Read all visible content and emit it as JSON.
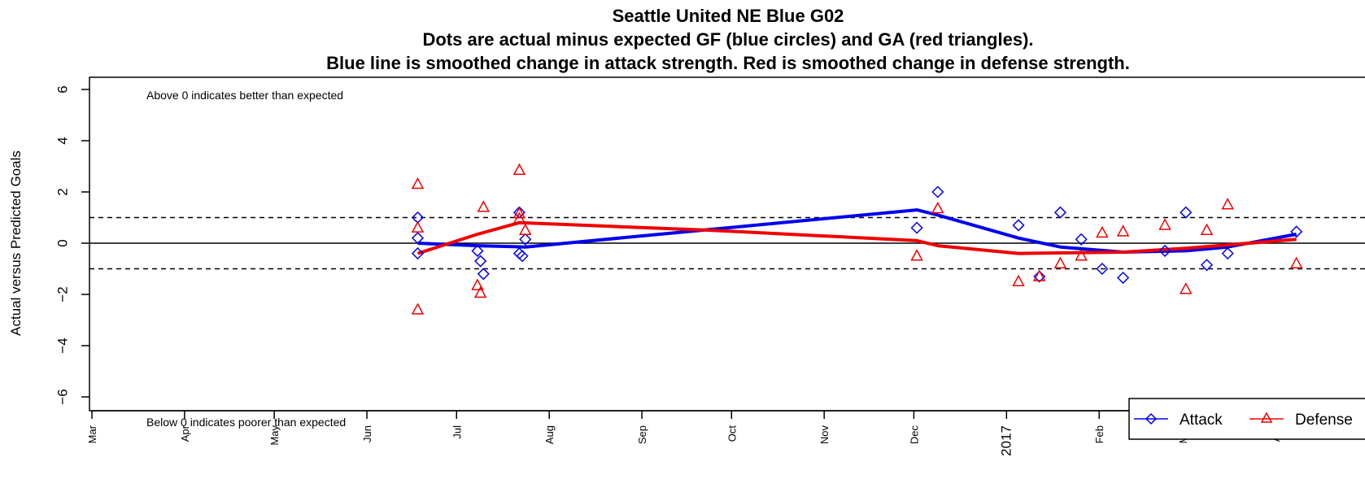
{
  "chart_data": {
    "type": "scatter",
    "title": [
      "Seattle United NE Blue G02",
      "Dots are actual minus expected GF (blue circles) and GA (red triangles).",
      "Blue line is smoothed change in attack strength. Red is smoothed change in defense strength."
    ],
    "ylabel": "Actual versus Predicted Goals",
    "xlabel": "",
    "ylim": [
      -6.5,
      6.5
    ],
    "y_ticks": [
      -6,
      -4,
      -2,
      0,
      2,
      4,
      6
    ],
    "x_ticks": [
      {
        "date": "2016-03-01",
        "label": "Mar"
      },
      {
        "date": "2016-04-01",
        "label": "Apr"
      },
      {
        "date": "2016-05-01",
        "label": "May"
      },
      {
        "date": "2016-06-01",
        "label": "Jun"
      },
      {
        "date": "2016-07-01",
        "label": "Jul"
      },
      {
        "date": "2016-08-01",
        "label": "Aug"
      },
      {
        "date": "2016-09-01",
        "label": "Sep"
      },
      {
        "date": "2016-10-01",
        "label": "Oct"
      },
      {
        "date": "2016-11-01",
        "label": "Nov"
      },
      {
        "date": "2016-12-01",
        "label": "Dec"
      },
      {
        "date": "2017-01-01",
        "label": "2017"
      },
      {
        "date": "2017-02-01",
        "label": "Feb"
      },
      {
        "date": "2017-03-01",
        "label": "Mar"
      },
      {
        "date": "2017-04-01",
        "label": "Apr"
      }
    ],
    "xlim": [
      "2016-03-01",
      "2017-04-19"
    ],
    "reference_lines": [
      {
        "y": 0,
        "style": "solid"
      },
      {
        "y": 1,
        "style": "dashed"
      },
      {
        "y": -1,
        "style": "dashed"
      }
    ],
    "annotations": {
      "top": "Above 0 indicates better than expected",
      "bottom": "Below 0 indicates poorer than expected"
    },
    "legend": {
      "placement": "bottom-right",
      "entries": [
        "Attack",
        "Defense"
      ]
    },
    "colors": {
      "attack": "#0000ee",
      "defense": "#ee0000"
    },
    "series": [
      {
        "name": "Attack",
        "marker": "diamond",
        "points": [
          {
            "x": "2016-06-18",
            "y": 1.0
          },
          {
            "x": "2016-06-18",
            "y": 0.2
          },
          {
            "x": "2016-06-18",
            "y": -0.4
          },
          {
            "x": "2016-07-08",
            "y": -0.3
          },
          {
            "x": "2016-07-09",
            "y": -0.7
          },
          {
            "x": "2016-07-10",
            "y": -1.2
          },
          {
            "x": "2016-07-22",
            "y": 1.2
          },
          {
            "x": "2016-07-22",
            "y": -0.4
          },
          {
            "x": "2016-07-23",
            "y": -0.5
          },
          {
            "x": "2016-07-24",
            "y": 0.15
          },
          {
            "x": "2016-12-02",
            "y": 0.6
          },
          {
            "x": "2016-12-09",
            "y": 2.0
          },
          {
            "x": "2017-01-05",
            "y": 0.7
          },
          {
            "x": "2017-01-12",
            "y": -1.3
          },
          {
            "x": "2017-01-19",
            "y": 1.2
          },
          {
            "x": "2017-01-26",
            "y": 0.15
          },
          {
            "x": "2017-02-02",
            "y": -1.0
          },
          {
            "x": "2017-02-09",
            "y": -1.35
          },
          {
            "x": "2017-02-23",
            "y": -0.3
          },
          {
            "x": "2017-03-02",
            "y": 1.2
          },
          {
            "x": "2017-03-09",
            "y": -0.85
          },
          {
            "x": "2017-03-16",
            "y": -0.4
          },
          {
            "x": "2017-04-08",
            "y": 0.45
          }
        ]
      },
      {
        "name": "Defense",
        "marker": "triangle",
        "points": [
          {
            "x": "2016-06-18",
            "y": 2.3
          },
          {
            "x": "2016-06-18",
            "y": 0.6
          },
          {
            "x": "2016-06-18",
            "y": -2.6
          },
          {
            "x": "2016-07-08",
            "y": -1.65
          },
          {
            "x": "2016-07-09",
            "y": -1.95
          },
          {
            "x": "2016-07-10",
            "y": 1.4
          },
          {
            "x": "2016-07-22",
            "y": 2.85
          },
          {
            "x": "2016-07-22",
            "y": 1.15
          },
          {
            "x": "2016-07-22",
            "y": 0.95
          },
          {
            "x": "2016-07-24",
            "y": 0.5
          },
          {
            "x": "2016-12-02",
            "y": -0.5
          },
          {
            "x": "2016-12-09",
            "y": 1.35
          },
          {
            "x": "2017-01-05",
            "y": -1.5
          },
          {
            "x": "2017-01-12",
            "y": -1.3
          },
          {
            "x": "2017-01-19",
            "y": -0.8
          },
          {
            "x": "2017-01-26",
            "y": -0.5
          },
          {
            "x": "2017-02-02",
            "y": 0.4
          },
          {
            "x": "2017-02-09",
            "y": 0.45
          },
          {
            "x": "2017-02-23",
            "y": 0.7
          },
          {
            "x": "2017-03-02",
            "y": -1.8
          },
          {
            "x": "2017-03-09",
            "y": 0.5
          },
          {
            "x": "2017-03-16",
            "y": 1.5
          },
          {
            "x": "2017-04-08",
            "y": -0.8
          }
        ]
      }
    ],
    "smoothed": [
      {
        "name": "Attack",
        "points": [
          {
            "x": "2016-06-18",
            "y": 0.0
          },
          {
            "x": "2016-07-08",
            "y": -0.1
          },
          {
            "x": "2016-07-24",
            "y": -0.15
          },
          {
            "x": "2016-09-25",
            "y": 0.55
          },
          {
            "x": "2016-12-02",
            "y": 1.3
          },
          {
            "x": "2016-12-09",
            "y": 1.1
          },
          {
            "x": "2017-01-05",
            "y": 0.2
          },
          {
            "x": "2017-01-19",
            "y": -0.15
          },
          {
            "x": "2017-02-09",
            "y": -0.35
          },
          {
            "x": "2017-03-02",
            "y": -0.3
          },
          {
            "x": "2017-03-16",
            "y": -0.15
          },
          {
            "x": "2017-04-08",
            "y": 0.35
          }
        ]
      },
      {
        "name": "Defense",
        "points": [
          {
            "x": "2016-06-18",
            "y": -0.4
          },
          {
            "x": "2016-07-08",
            "y": 0.35
          },
          {
            "x": "2016-07-22",
            "y": 0.8
          },
          {
            "x": "2016-09-25",
            "y": 0.5
          },
          {
            "x": "2016-12-02",
            "y": 0.1
          },
          {
            "x": "2016-12-09",
            "y": -0.1
          },
          {
            "x": "2017-01-05",
            "y": -0.4
          },
          {
            "x": "2017-02-09",
            "y": -0.35
          },
          {
            "x": "2017-03-02",
            "y": -0.2
          },
          {
            "x": "2017-04-08",
            "y": 0.15
          }
        ]
      }
    ]
  }
}
